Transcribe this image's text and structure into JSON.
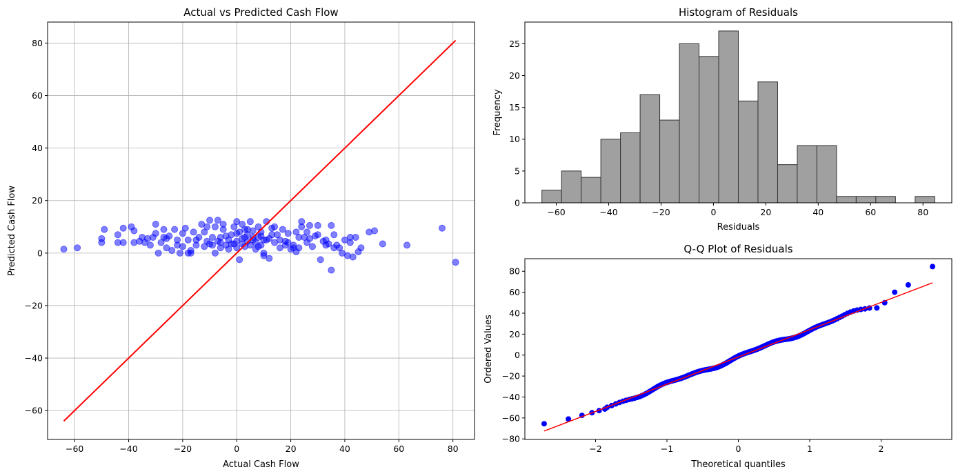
{
  "chart_data": [
    {
      "type": "scatter",
      "title": "Actual vs Predicted Cash Flow",
      "xlabel": "Actual Cash Flow",
      "ylabel": "Predicted Cash Flow",
      "xlim": [
        -70,
        88
      ],
      "ylim": [
        -71,
        88
      ],
      "xticks": [
        -60,
        -40,
        -20,
        0,
        20,
        40,
        60,
        80
      ],
      "yticks": [
        -60,
        -40,
        -20,
        0,
        20,
        40,
        60,
        80
      ],
      "grid": true,
      "point_color": "#0000ff",
      "line_color": "#ff0000",
      "reference_line": {
        "x": [
          -64,
          81
        ],
        "y": [
          -64,
          81
        ]
      },
      "points": [
        [
          -64,
          1.5
        ],
        [
          -59,
          2
        ],
        [
          -50,
          4
        ],
        [
          -50,
          5.5
        ],
        [
          -49,
          9
        ],
        [
          -44,
          4
        ],
        [
          -42,
          4
        ],
        [
          -42,
          9.5
        ],
        [
          -39,
          10
        ],
        [
          -38,
          8.5
        ],
        [
          -38,
          4
        ],
        [
          -36,
          4.5
        ],
        [
          -33,
          5.5
        ],
        [
          -32,
          3
        ],
        [
          -31,
          6
        ],
        [
          -30,
          11
        ],
        [
          -30,
          7.5
        ],
        [
          -29,
          0
        ],
        [
          -28,
          4
        ],
        [
          -27,
          6
        ],
        [
          -27,
          9
        ],
        [
          -26,
          2
        ],
        [
          -25,
          6.5
        ],
        [
          -24,
          1
        ],
        [
          -23,
          9
        ],
        [
          -22,
          5
        ],
        [
          -21,
          0
        ],
        [
          -20,
          2.5
        ],
        [
          -20,
          7.5
        ],
        [
          -19,
          9.5
        ],
        [
          -18,
          5
        ],
        [
          -17,
          0
        ],
        [
          -17,
          1
        ],
        [
          -16,
          8
        ],
        [
          -15,
          3
        ],
        [
          -14,
          6
        ],
        [
          -13,
          11
        ],
        [
          -12,
          8
        ],
        [
          -11,
          10
        ],
        [
          -10,
          12.5
        ],
        [
          -10,
          3.5
        ],
        [
          -9,
          6
        ],
        [
          -8,
          0
        ],
        [
          -8,
          10
        ],
        [
          -7,
          4.5
        ],
        [
          -7,
          12.5
        ],
        [
          -6,
          2
        ],
        [
          -6,
          6
        ],
        [
          -5,
          11
        ],
        [
          -5,
          9
        ],
        [
          -4,
          3
        ],
        [
          -3,
          5
        ],
        [
          -3,
          1.5
        ],
        [
          -2,
          7
        ],
        [
          -1,
          10
        ],
        [
          0,
          4.5
        ],
        [
          0,
          12
        ],
        [
          0,
          2
        ],
        [
          1,
          8
        ],
        [
          1,
          -2.5
        ],
        [
          2,
          5.5
        ],
        [
          2,
          11
        ],
        [
          3,
          2.5
        ],
        [
          3,
          9
        ],
        [
          4,
          4.5
        ],
        [
          4,
          7
        ],
        [
          5,
          12
        ],
        [
          5,
          3
        ],
        [
          6,
          8.5
        ],
        [
          6,
          5
        ],
        [
          7,
          4
        ],
        [
          7,
          1.5
        ],
        [
          8,
          10
        ],
        [
          8,
          6
        ],
        [
          9,
          3
        ],
        [
          9,
          8
        ],
        [
          10,
          5
        ],
        [
          10,
          0
        ],
        [
          10,
          -1
        ],
        [
          11,
          12
        ],
        [
          12,
          5.5
        ],
        [
          12,
          -2
        ],
        [
          13,
          9.5
        ],
        [
          14,
          4
        ],
        [
          15,
          7
        ],
        [
          16,
          2
        ],
        [
          17,
          9
        ],
        [
          18,
          4.5
        ],
        [
          19,
          7.5
        ],
        [
          20,
          1.5
        ],
        [
          21,
          3
        ],
        [
          22,
          8
        ],
        [
          22,
          0.5
        ],
        [
          23,
          2
        ],
        [
          24,
          12
        ],
        [
          24,
          10
        ],
        [
          25,
          6
        ],
        [
          26,
          4
        ],
        [
          27,
          10.5
        ],
        [
          28,
          2.5
        ],
        [
          29,
          6.5
        ],
        [
          30,
          10.5
        ],
        [
          31,
          -2.5
        ],
        [
          32,
          4.5
        ],
        [
          33,
          3
        ],
        [
          34,
          3.5
        ],
        [
          35,
          10.5
        ],
        [
          35,
          -6.5
        ],
        [
          36,
          7
        ],
        [
          37,
          3
        ],
        [
          38,
          2
        ],
        [
          39,
          0
        ],
        [
          40,
          5
        ],
        [
          41,
          -1
        ],
        [
          42,
          6
        ],
        [
          42,
          4
        ],
        [
          43,
          -1.5
        ],
        [
          44,
          6
        ],
        [
          45,
          0.5
        ],
        [
          46,
          2
        ],
        [
          49,
          8
        ],
        [
          51,
          8.5
        ],
        [
          54,
          3.5
        ],
        [
          63,
          3
        ],
        [
          76,
          9.5
        ],
        [
          81,
          -3.5
        ],
        [
          -44,
          7
        ],
        [
          -35,
          6
        ],
        [
          -26,
          5.5
        ],
        [
          -22,
          3
        ],
        [
          -15,
          5
        ],
        [
          -12,
          2.5
        ],
        [
          -9,
          3
        ],
        [
          -4,
          6.5
        ],
        [
          -1,
          3.5
        ],
        [
          2,
          3.5
        ],
        [
          4,
          9
        ],
        [
          6,
          6
        ],
        [
          8,
          2.5
        ],
        [
          11,
          5
        ],
        [
          14,
          10
        ],
        [
          16,
          5
        ],
        [
          19,
          4
        ],
        [
          21,
          2
        ],
        [
          23,
          6
        ],
        [
          27,
          5.5
        ],
        [
          30,
          7
        ],
        [
          33,
          5
        ],
        [
          36,
          2
        ],
        [
          -18,
          0
        ],
        [
          -11,
          4.5
        ],
        [
          -6,
          4
        ],
        [
          -2,
          3.5
        ],
        [
          3,
          6
        ],
        [
          9,
          6.5
        ],
        [
          13,
          7
        ],
        [
          18,
          3
        ],
        [
          26,
          8
        ],
        [
          -34,
          4
        ],
        [
          0,
          7.5
        ]
      ]
    },
    {
      "type": "bar",
      "title": "Histogram of Residuals",
      "xlabel": "Residuals",
      "ylabel": "Frequency",
      "xlim": [
        -72,
        91
      ],
      "ylim": [
        0,
        28.4
      ],
      "xticks": [
        -60,
        -40,
        -20,
        0,
        20,
        40,
        60,
        80
      ],
      "yticks": [
        0,
        5,
        10,
        15,
        20,
        25
      ],
      "bar_color": "#a0a0a0",
      "edge_color": "#333333",
      "bin_start": -65.5,
      "bin_width": 7.5,
      "values": [
        2,
        5,
        4,
        10,
        11,
        17,
        13,
        25,
        23,
        27,
        16,
        19,
        6,
        9,
        9,
        1,
        1,
        1,
        0,
        1
      ]
    },
    {
      "type": "scatter",
      "title": "Q-Q Plot of Residuals",
      "xlabel": "Theoretical quantiles",
      "ylabel": "Ordered Values",
      "xlim": [
        -2.99,
        2.99
      ],
      "ylim": [
        -80.5,
        92
      ],
      "xticks": [
        -2,
        -1,
        0,
        1,
        2
      ],
      "yticks": [
        -80,
        -60,
        -40,
        -20,
        0,
        20,
        40,
        60,
        80
      ],
      "point_color": "#0000ff",
      "line_color": "#ff0000",
      "reference_line": {
        "x": [
          -2.72,
          2.72
        ],
        "y": [
          -72.5,
          69
        ]
      },
      "n": 200,
      "line_slope": 26,
      "line_intercept": -1.75,
      "outliers": [
        [
          -2.72,
          -65.5
        ],
        [
          -2.38,
          -61
        ],
        [
          -2.19,
          -57.5
        ],
        [
          -2.05,
          -55
        ],
        [
          -1.95,
          -53
        ],
        [
          -1.87,
          -51.5
        ],
        [
          1.94,
          45
        ],
        [
          2.05,
          50
        ],
        [
          2.19,
          60
        ],
        [
          2.38,
          67
        ],
        [
          2.72,
          84.5
        ]
      ]
    }
  ]
}
